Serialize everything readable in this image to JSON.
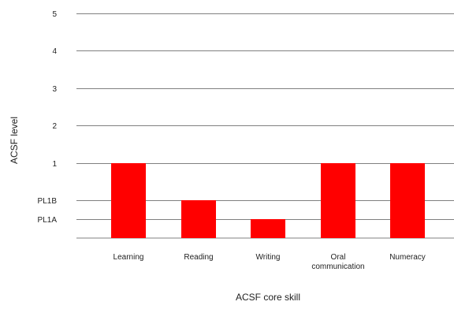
{
  "chart_data": {
    "type": "bar",
    "title": "",
    "xlabel": "ACSF core skill",
    "ylabel": "ACSF level",
    "y_ticks": [
      "5",
      "4",
      "3",
      "2",
      "1",
      "PL1B",
      "PL1A"
    ],
    "y_tick_values": [
      5,
      4,
      3,
      2,
      1,
      0.5,
      0.25
    ],
    "ylim": [
      0,
      5
    ],
    "grid": true,
    "legend": "none",
    "categories": [
      [
        "Learning"
      ],
      [
        "Reading"
      ],
      [
        "Writing"
      ],
      [
        "Oral",
        "communication"
      ],
      [
        "Numeracy"
      ]
    ],
    "values": [
      1,
      0.5,
      0.25,
      1,
      1
    ],
    "bar_color": "#ff0000",
    "grid_color": "#808080"
  }
}
